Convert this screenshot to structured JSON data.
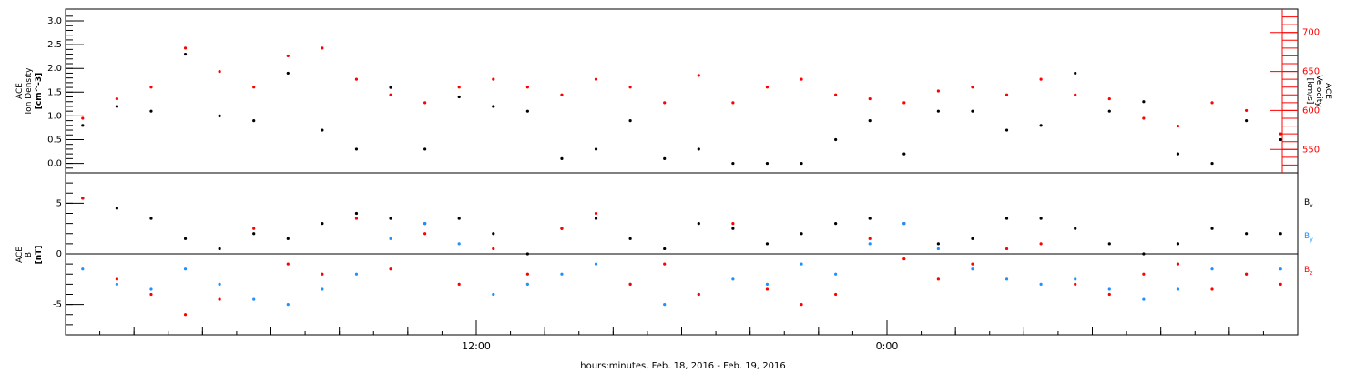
{
  "chart_data": [
    {
      "type": "scatter",
      "title": "",
      "ylabel": [
        "ACE",
        "Ion Density",
        "[cm^-3]"
      ],
      "ylim": [
        -0.2,
        3.25
      ],
      "yticks": [
        0.0,
        0.5,
        1.0,
        1.5,
        2.0,
        2.5,
        3.0
      ],
      "ytick_labels": [
        "0.0",
        "0.5",
        "1.0",
        "1.5",
        "2.0",
        "2.5",
        "3.0"
      ],
      "y2label": [
        "ACE",
        "Velocity",
        "[km/s]"
      ],
      "y2lim": [
        520,
        730
      ],
      "y2ticks": [
        550,
        600,
        650,
        700
      ],
      "y2tick_labels": [
        "550",
        "600",
        "650",
        "700"
      ],
      "series": [
        {
          "color": "#000000",
          "axis": "left",
          "x": [
            0.5,
            1.5,
            2.5,
            3.5,
            4.5,
            5.5,
            6.5,
            7.5,
            8.5,
            9.5,
            10.5,
            11.5,
            12.5,
            13.5,
            14.5,
            15.5,
            16.5,
            17.5,
            18.5,
            19.5,
            20.5,
            21.5,
            22.5,
            23.5,
            24.5,
            25.5,
            26.5,
            27.5,
            28.5,
            29.5,
            30.5,
            31.5,
            32.5,
            33.5,
            34.5,
            35.5
          ],
          "y": [
            0.8,
            1.2,
            1.1,
            2.3,
            1.0,
            0.9,
            1.9,
            0.7,
            0.3,
            1.6,
            0.3,
            1.4,
            1.2,
            1.1,
            0.1,
            0.3,
            0.9,
            0.1,
            0.3,
            0.0,
            0.0,
            0.0,
            0.5,
            0.9,
            0.2,
            1.1,
            1.1,
            0.7,
            0.8,
            1.9,
            1.1,
            1.3,
            0.2,
            0.0,
            0.9,
            0.5
          ]
        },
        {
          "color": "#ff0000",
          "axis": "right",
          "x": [
            0.5,
            1.5,
            2.5,
            3.5,
            4.5,
            5.5,
            6.5,
            7.5,
            8.5,
            9.5,
            10.5,
            11.5,
            12.5,
            13.5,
            14.5,
            15.5,
            16.5,
            17.5,
            18.5,
            19.5,
            20.5,
            21.5,
            22.5,
            23.5,
            24.5,
            25.5,
            26.5,
            27.5,
            28.5,
            29.5,
            30.5,
            31.5,
            32.5,
            33.5,
            34.5,
            35.5
          ],
          "y": [
            590,
            615,
            630,
            680,
            650,
            630,
            670,
            680,
            640,
            620,
            610,
            630,
            640,
            630,
            620,
            640,
            630,
            610,
            645,
            610,
            630,
            640,
            620,
            615,
            610,
            625,
            630,
            620,
            640,
            620,
            615,
            590,
            580,
            610,
            600,
            570
          ]
        }
      ]
    },
    {
      "type": "scatter",
      "title": "",
      "ylabel": [
        "ACE",
        "B",
        "[nT]"
      ],
      "ylim": [
        -8,
        8
      ],
      "yticks": [
        -5,
        0,
        5
      ],
      "ytick_labels": [
        "-5",
        "0",
        "5"
      ],
      "xlabel": "hours:minutes, Feb. 18, 2016 - Feb. 19, 2016",
      "xticks": [
        12,
        24
      ],
      "xtick_labels": [
        "12:00",
        "0:00"
      ],
      "xlim": [
        0,
        36
      ],
      "zero_line": true,
      "series": [
        {
          "name": "Bx",
          "color": "#000000",
          "x": [
            0.5,
            1.5,
            2.5,
            3.5,
            4.5,
            5.5,
            6.5,
            7.5,
            8.5,
            9.5,
            10.5,
            11.5,
            12.5,
            13.5,
            14.5,
            15.5,
            16.5,
            17.5,
            18.5,
            19.5,
            20.5,
            21.5,
            22.5,
            23.5,
            24.5,
            25.5,
            26.5,
            27.5,
            28.5,
            29.5,
            30.5,
            31.5,
            32.5,
            33.5,
            34.5,
            35.5
          ],
          "y": [
            5.5,
            4.5,
            3.5,
            1.5,
            0.5,
            2.0,
            1.5,
            3.0,
            4.0,
            3.5,
            3.0,
            3.5,
            2.0,
            0.0,
            2.5,
            3.5,
            1.5,
            0.5,
            3.0,
            2.5,
            1.0,
            2.0,
            3.0,
            3.5,
            3.0,
            1.0,
            1.5,
            3.5,
            3.5,
            2.5,
            1.0,
            0.0,
            1.0,
            2.5,
            2.0,
            2.0
          ]
        },
        {
          "name": "By",
          "color": "#1e90ff",
          "x": [
            0.5,
            1.5,
            2.5,
            3.5,
            4.5,
            5.5,
            6.5,
            7.5,
            8.5,
            9.5,
            10.5,
            11.5,
            12.5,
            13.5,
            14.5,
            15.5,
            16.5,
            17.5,
            18.5,
            19.5,
            20.5,
            21.5,
            22.5,
            23.5,
            24.5,
            25.5,
            26.5,
            27.5,
            28.5,
            29.5,
            30.5,
            31.5,
            32.5,
            33.5,
            34.5,
            35.5
          ],
          "y": [
            -1.5,
            -3.0,
            -3.5,
            -1.5,
            -3.0,
            -4.5,
            -5.0,
            -3.5,
            -2.0,
            1.5,
            3.0,
            1.0,
            -4.0,
            -3.0,
            -2.0,
            -1.0,
            -3.0,
            -5.0,
            -4.0,
            -2.5,
            -3.0,
            -1.0,
            -2.0,
            1.0,
            3.0,
            0.5,
            -1.5,
            -2.5,
            -3.0,
            -2.5,
            -3.5,
            -4.5,
            -3.5,
            -1.5,
            -2.0,
            -1.5
          ]
        },
        {
          "name": "Bz",
          "color": "#ff0000",
          "x": [
            0.5,
            1.5,
            2.5,
            3.5,
            4.5,
            5.5,
            6.5,
            7.5,
            8.5,
            9.5,
            10.5,
            11.5,
            12.5,
            13.5,
            14.5,
            15.5,
            16.5,
            17.5,
            18.5,
            19.5,
            20.5,
            21.5,
            22.5,
            23.5,
            24.5,
            25.5,
            26.5,
            27.5,
            28.5,
            29.5,
            30.5,
            31.5,
            32.5,
            33.5,
            34.5,
            35.5
          ],
          "y": [
            5.5,
            -2.5,
            -4.0,
            -6.0,
            -4.5,
            2.5,
            -1.0,
            -2.0,
            3.5,
            -1.5,
            2.0,
            -3.0,
            0.5,
            -2.0,
            2.5,
            4.0,
            -3.0,
            -1.0,
            -4.0,
            3.0,
            -3.5,
            -5.0,
            -4.0,
            1.5,
            -0.5,
            -2.5,
            -1.0,
            0.5,
            1.0,
            -3.0,
            -4.0,
            -2.0,
            -1.0,
            -3.5,
            -2.0,
            -3.0
          ]
        }
      ],
      "legend": [
        {
          "label": "B",
          "sub": "x",
          "color": "#000000"
        },
        {
          "label": "B",
          "sub": "y",
          "color": "#1e90ff"
        },
        {
          "label": "B",
          "sub": "z",
          "color": "#ff0000"
        }
      ]
    }
  ]
}
